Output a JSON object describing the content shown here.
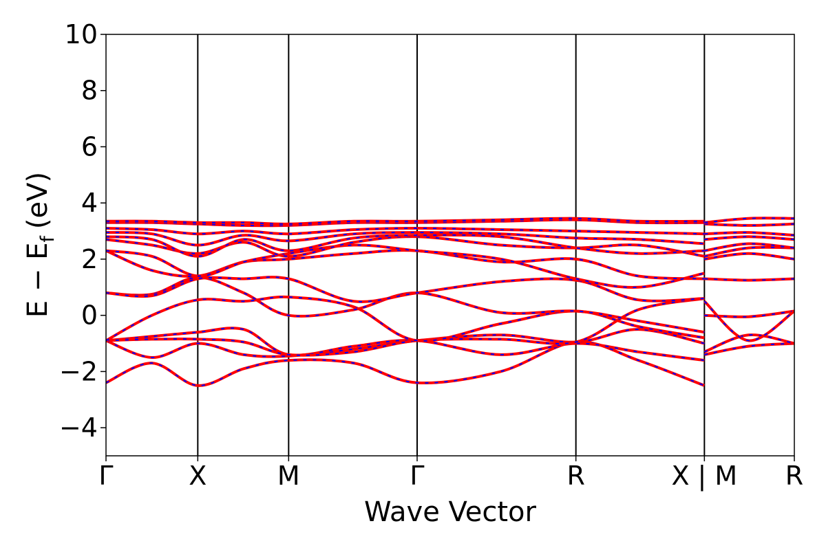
{
  "chart_data": {
    "type": "line",
    "xlabel": "Wave Vector",
    "ylabel_main": "E − E",
    "ylabel_sub": "f",
    "ylabel_unit": "(eV)",
    "ylim": [
      -5,
      10
    ],
    "yticks": [
      "−4",
      "−2",
      "0",
      "2",
      "4",
      "6",
      "8",
      "10"
    ],
    "ytick_values": [
      -4,
      -2,
      0,
      2,
      4,
      6,
      8,
      10
    ],
    "xlim": [
      0,
      7.5
    ],
    "high_symmetry_points": [
      {
        "label": "Γ",
        "x": 0
      },
      {
        "label": "X",
        "x": 1
      },
      {
        "label": "M",
        "x": 1.99
      },
      {
        "label": "Γ",
        "x": 3.39
      },
      {
        "label": "R",
        "x": 5.12
      },
      {
        "label": "X | M",
        "x": 6.52
      },
      {
        "label": "R",
        "x": 7.5
      }
    ],
    "colors": {
      "band_red": "#ff0000",
      "band_blue": "#0000ff",
      "vline": "#000000"
    },
    "grid": false,
    "series": [
      {
        "x": [
          0,
          0.5,
          1,
          1.5,
          1.99,
          2.7,
          3.39,
          4.3,
          5.12,
          5.8,
          6.52
        ],
        "values": [
          -2.4,
          -1.7,
          -2.5,
          -1.9,
          -1.6,
          -1.7,
          -2.4,
          -2.0,
          -0.95,
          -1.6,
          -2.5
        ]
      },
      {
        "x": [
          0,
          0.5,
          1,
          1.5,
          1.99,
          2.7,
          3.39,
          4.3,
          5.12,
          5.8,
          6.52
        ],
        "values": [
          -0.9,
          -1.5,
          -1.0,
          -1.4,
          -1.45,
          -1.2,
          -0.9,
          -0.7,
          -0.95,
          -0.5,
          -1.0
        ]
      },
      {
        "x": [
          0,
          0.5,
          1,
          1.5,
          1.99,
          2.7,
          3.39,
          4.3,
          5.12,
          5.8,
          6.52
        ],
        "values": [
          -0.9,
          -0.75,
          -0.6,
          -0.5,
          -1.4,
          -1.1,
          -0.9,
          -1.4,
          -1.0,
          -1.3,
          -1.6
        ]
      },
      {
        "x": [
          0,
          0.5,
          1,
          1.5,
          1.99,
          2.7,
          3.39,
          4.3,
          5.12,
          5.8,
          6.52
        ],
        "values": [
          -0.9,
          -0.85,
          -0.85,
          -0.95,
          -1.4,
          -1.3,
          -0.9,
          -0.85,
          -0.95,
          0.2,
          0.6
        ]
      },
      {
        "x": [
          0,
          0.5,
          1,
          1.5,
          1.99,
          2.7,
          3.39,
          4.3,
          5.12,
          5.8,
          6.52
        ],
        "values": [
          -0.9,
          0.0,
          0.55,
          0.5,
          0.65,
          0.3,
          -0.9,
          -0.3,
          0.15,
          -0.4,
          -0.8
        ]
      },
      {
        "x": [
          0,
          0.5,
          1,
          1.5,
          1.99,
          2.7,
          3.39,
          4.3,
          5.12,
          5.8,
          6.52
        ],
        "values": [
          0.8,
          0.75,
          1.35,
          0.8,
          0.0,
          0.2,
          0.8,
          0.1,
          0.15,
          -0.2,
          -0.6
        ]
      },
      {
        "x": [
          0,
          0.5,
          1,
          1.5,
          1.99,
          2.7,
          3.39,
          4.3,
          5.12,
          5.8,
          6.52
        ],
        "values": [
          0.8,
          0.7,
          1.3,
          1.3,
          1.3,
          0.5,
          0.8,
          1.2,
          1.25,
          0.55,
          0.6
        ]
      },
      {
        "x": [
          0,
          0.5,
          1,
          1.5,
          1.99,
          2.7,
          3.39,
          4.3,
          5.12,
          5.8,
          6.52
        ],
        "values": [
          2.3,
          1.6,
          1.4,
          1.9,
          2.0,
          2.2,
          2.3,
          1.9,
          2.0,
          1.4,
          1.3
        ]
      },
      {
        "x": [
          0,
          0.5,
          1,
          1.5,
          1.99,
          2.7,
          3.39,
          4.3,
          5.12,
          5.8,
          6.52
        ],
        "values": [
          2.3,
          2.1,
          1.4,
          1.9,
          2.2,
          2.5,
          2.3,
          2.0,
          1.3,
          1.0,
          1.5
        ]
      },
      {
        "x": [
          0,
          0.5,
          1,
          1.5,
          1.99,
          2.7,
          3.39,
          4.3,
          5.12,
          5.8,
          6.52
        ],
        "values": [
          2.7,
          2.5,
          2.2,
          2.6,
          2.1,
          2.6,
          2.8,
          2.5,
          2.4,
          2.5,
          2.1
        ]
      },
      {
        "x": [
          0,
          0.5,
          1,
          1.5,
          1.99,
          2.7,
          3.39,
          4.3,
          5.12,
          5.8,
          6.52
        ],
        "values": [
          2.8,
          2.7,
          2.1,
          2.7,
          2.3,
          2.75,
          2.85,
          2.8,
          2.4,
          2.2,
          2.3
        ]
      },
      {
        "x": [
          0,
          0.5,
          1,
          1.5,
          1.99,
          2.7,
          3.39,
          4.3,
          5.12,
          5.8,
          6.52
        ],
        "values": [
          2.95,
          2.9,
          2.5,
          2.85,
          2.65,
          2.9,
          2.95,
          2.9,
          2.75,
          2.7,
          2.55
        ]
      },
      {
        "x": [
          0,
          0.5,
          1,
          1.5,
          1.99,
          2.7,
          3.39,
          4.3,
          5.12,
          5.8,
          6.52
        ],
        "values": [
          3.1,
          3.05,
          2.9,
          3.0,
          2.9,
          3.05,
          3.1,
          3.05,
          3.0,
          2.95,
          2.9
        ]
      },
      {
        "x": [
          0,
          0.5,
          1,
          1.5,
          1.99,
          2.7,
          3.39,
          4.3,
          5.12,
          5.8,
          6.52
        ],
        "values": [
          3.3,
          3.3,
          3.25,
          3.2,
          3.2,
          3.3,
          3.3,
          3.35,
          3.4,
          3.3,
          3.3
        ]
      },
      {
        "x": [
          0,
          0.5,
          1,
          1.5,
          1.99,
          2.7,
          3.39,
          4.3,
          5.12,
          5.8,
          6.52
        ],
        "values": [
          3.35,
          3.35,
          3.3,
          3.3,
          3.25,
          3.35,
          3.35,
          3.4,
          3.45,
          3.35,
          3.35
        ]
      },
      {
        "x": [
          6.52,
          7.0,
          7.5
        ],
        "values": [
          -1.4,
          -1.1,
          -1.0
        ]
      },
      {
        "x": [
          6.52,
          7.0,
          7.5
        ],
        "values": [
          -1.3,
          -0.7,
          -1.0
        ]
      },
      {
        "x": [
          6.52,
          7.0,
          7.5
        ],
        "values": [
          0.0,
          -0.05,
          0.15
        ]
      },
      {
        "x": [
          6.52,
          7.0,
          7.5
        ],
        "values": [
          0.5,
          -0.9,
          0.15
        ]
      },
      {
        "x": [
          6.52,
          7.0,
          7.5
        ],
        "values": [
          1.3,
          1.25,
          1.3
        ]
      },
      {
        "x": [
          6.52,
          7.0,
          7.5
        ],
        "values": [
          2.0,
          2.2,
          2.0
        ]
      },
      {
        "x": [
          6.52,
          7.0,
          7.5
        ],
        "values": [
          2.1,
          2.4,
          2.4
        ]
      },
      {
        "x": [
          6.52,
          7.0,
          7.5
        ],
        "values": [
          2.3,
          2.55,
          2.4
        ]
      },
      {
        "x": [
          6.52,
          7.0,
          7.5
        ],
        "values": [
          2.7,
          2.8,
          2.7
        ]
      },
      {
        "x": [
          6.52,
          7.0,
          7.5
        ],
        "values": [
          2.9,
          2.95,
          2.85
        ]
      },
      {
        "x": [
          6.52,
          7.0,
          7.5
        ],
        "values": [
          3.25,
          3.2,
          3.25
        ]
      },
      {
        "x": [
          6.52,
          7.0,
          7.5
        ],
        "values": [
          3.3,
          3.45,
          3.45
        ]
      }
    ]
  }
}
